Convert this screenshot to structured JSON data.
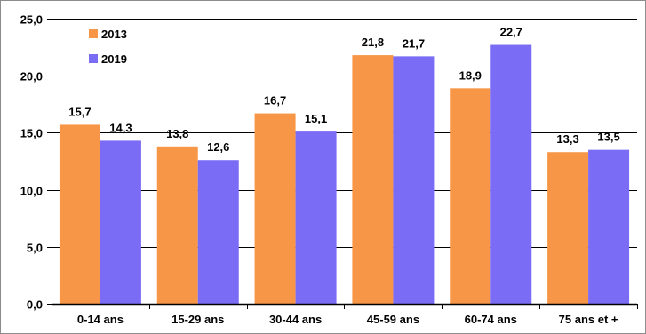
{
  "chart_data": {
    "type": "bar",
    "categories": [
      "0-14 ans",
      "15-29 ans",
      "30-44 ans",
      "45-59 ans",
      "60-74 ans",
      "75 ans et +"
    ],
    "series": [
      {
        "name": "2013",
        "color": "#f79646",
        "values": [
          15.7,
          13.8,
          16.7,
          21.8,
          18.9,
          13.3
        ],
        "labels": [
          "15,7",
          "13,8",
          "16,7",
          "21,8",
          "18,9",
          "13,3"
        ]
      },
      {
        "name": "2019",
        "color": "#7b6cf6",
        "values": [
          14.3,
          12.6,
          15.1,
          21.7,
          22.7,
          13.5
        ],
        "labels": [
          "14,3",
          "12,6",
          "15,1",
          "21,7",
          "22,7",
          "13,5"
        ]
      }
    ],
    "ylim": [
      0,
      25
    ],
    "yticks": [
      "0,0",
      "5,0",
      "10,0",
      "15,0",
      "20,0",
      "25,0"
    ],
    "grid": true,
    "legend_position": "top-left",
    "title": "",
    "xlabel": "",
    "ylabel": ""
  }
}
